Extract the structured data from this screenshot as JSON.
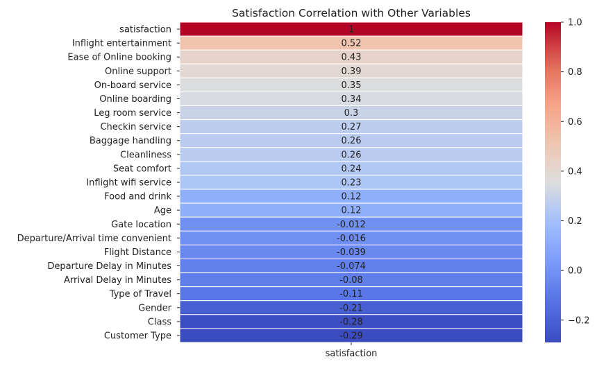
{
  "chart_data": {
    "type": "heatmap",
    "title": "Satisfaction Correlation with Other Variables",
    "xlabel": "",
    "ylabel": "",
    "columns": [
      "satisfaction"
    ],
    "rows": [
      {
        "label": "satisfaction",
        "value": 1,
        "text": "1"
      },
      {
        "label": "Inflight entertainment",
        "value": 0.52,
        "text": "0.52"
      },
      {
        "label": "Ease of Online booking",
        "value": 0.43,
        "text": "0.43"
      },
      {
        "label": "Online support",
        "value": 0.39,
        "text": "0.39"
      },
      {
        "label": "On-board service",
        "value": 0.35,
        "text": "0.35"
      },
      {
        "label": "Online boarding",
        "value": 0.34,
        "text": "0.34"
      },
      {
        "label": "Leg room service",
        "value": 0.3,
        "text": "0.3"
      },
      {
        "label": "Checkin service",
        "value": 0.27,
        "text": "0.27"
      },
      {
        "label": "Baggage handling",
        "value": 0.26,
        "text": "0.26"
      },
      {
        "label": "Cleanliness",
        "value": 0.26,
        "text": "0.26"
      },
      {
        "label": "Seat comfort",
        "value": 0.24,
        "text": "0.24"
      },
      {
        "label": "Inflight wifi service",
        "value": 0.23,
        "text": "0.23"
      },
      {
        "label": "Food and drink",
        "value": 0.12,
        "text": "0.12"
      },
      {
        "label": "Age",
        "value": 0.12,
        "text": "0.12"
      },
      {
        "label": "Gate location",
        "value": -0.012,
        "text": "-0.012"
      },
      {
        "label": "Departure/Arrival time convenient",
        "value": -0.016,
        "text": "-0.016"
      },
      {
        "label": "Flight Distance",
        "value": -0.039,
        "text": "-0.039"
      },
      {
        "label": "Departure Delay in Minutes",
        "value": -0.074,
        "text": "-0.074"
      },
      {
        "label": "Arrival Delay in Minutes",
        "value": -0.08,
        "text": "-0.08"
      },
      {
        "label": "Type of Travel",
        "value": -0.11,
        "text": "-0.11"
      },
      {
        "label": "Gender",
        "value": -0.21,
        "text": "-0.21"
      },
      {
        "label": "Class",
        "value": -0.28,
        "text": "-0.28"
      },
      {
        "label": "Customer Type",
        "value": -0.29,
        "text": "-0.29"
      }
    ],
    "colormap": "coolwarm",
    "vmin": -0.29,
    "vmax": 1,
    "colorbar_ticks": [
      {
        "value": 1,
        "label": "1.0"
      },
      {
        "value": 0.8,
        "label": "0.8"
      },
      {
        "value": 0.6,
        "label": "0.6"
      },
      {
        "value": 0.4,
        "label": "0.4"
      },
      {
        "value": 0.2,
        "label": "0.2"
      },
      {
        "value": 0,
        "label": "0.0"
      },
      {
        "value": -0.2,
        "label": "−0.2"
      }
    ],
    "annotations": true,
    "grid": false,
    "legend": "colorbar-right"
  }
}
